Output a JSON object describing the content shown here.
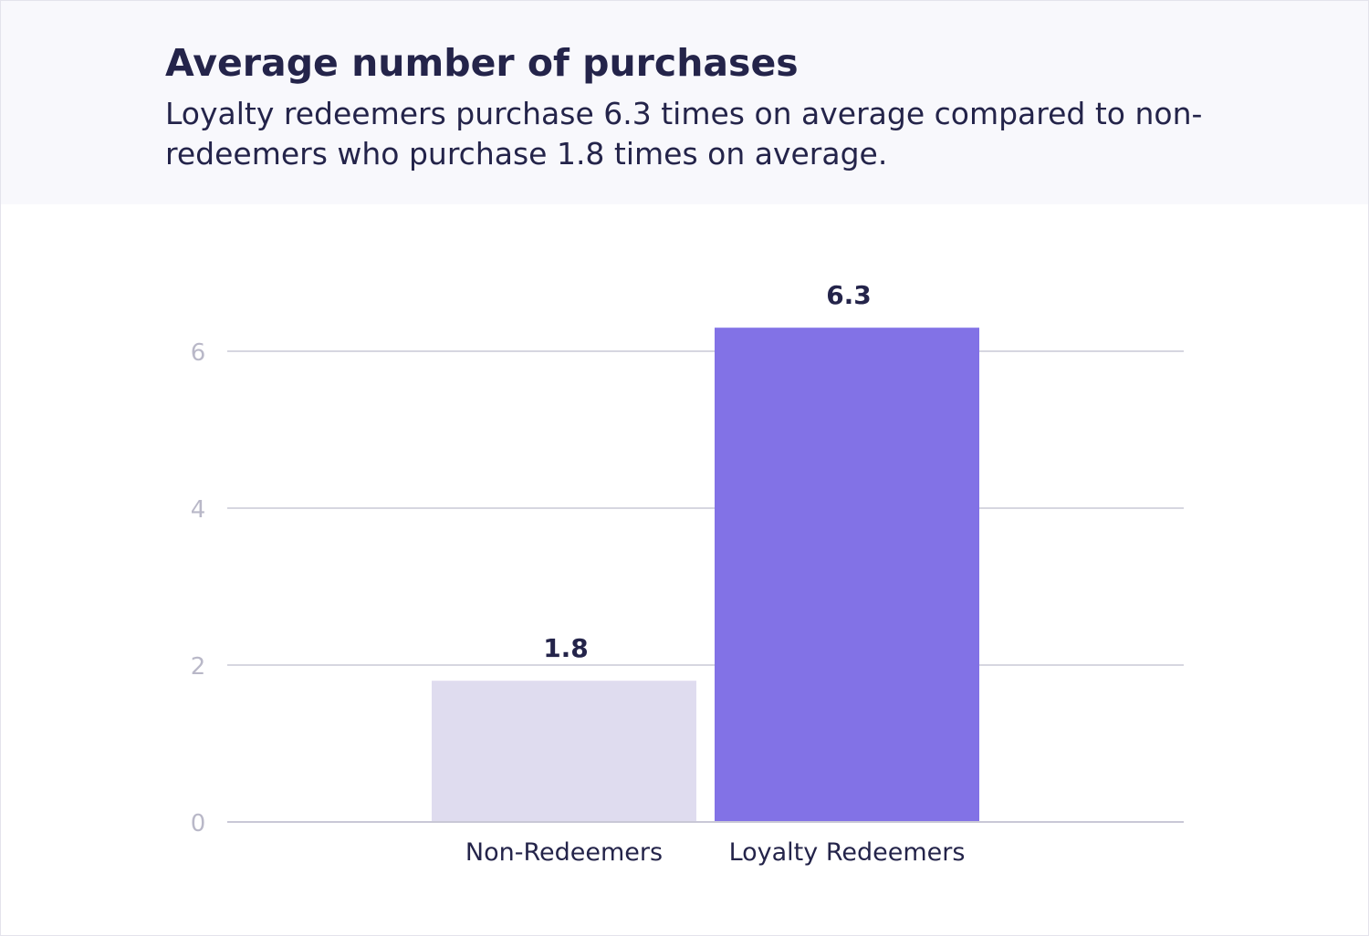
{
  "header": {
    "title": "Average number of purchases",
    "subtitle": "Loyalty redeemers purchase 6.3 times on average compared to non-redeemers who purchase  1.8 times on average."
  },
  "colors": {
    "header_bg": "#f8f8fc",
    "text_dark": "#24244a",
    "tick_text": "#b9b8c8",
    "grid": "#c9c8d6",
    "bar_non_redeemers": "#dfdcef",
    "bar_loyalty_redeemers": "#8272e6"
  },
  "chart_data": {
    "type": "bar",
    "title": "Average number of purchases",
    "xlabel": "",
    "ylabel": "",
    "categories": [
      "Non-Redeemers",
      "Loyalty Redeemers"
    ],
    "values": [
      1.8,
      6.3
    ],
    "value_labels": [
      "1.8",
      "6.3"
    ],
    "ylim": [
      0,
      6.75
    ],
    "yticks": [
      0,
      2,
      4,
      6
    ],
    "ytick_labels": [
      "0",
      "2",
      "4",
      "6"
    ],
    "grid": true,
    "legend": "none"
  }
}
